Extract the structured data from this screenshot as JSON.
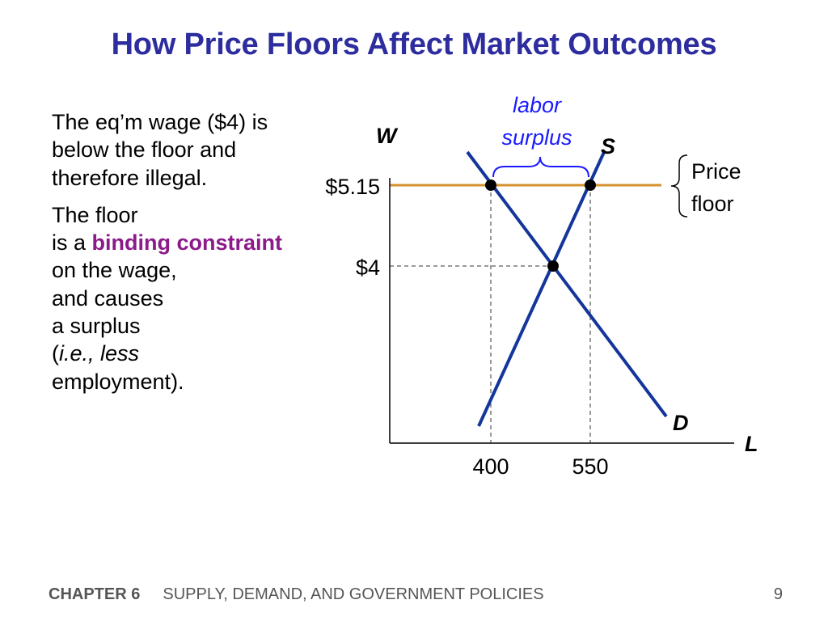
{
  "title": "How Price Floors Affect Market Outcomes",
  "body": {
    "p1": "The eq’m wage ($4) is below the floor and therefore illegal.",
    "p2_line1": "The floor",
    "p2_line2_prefix": "is a ",
    "p2_emph": "binding constraint",
    "p2_line3": "on the wage,",
    "p2_line4": "and causes",
    "p2_line5": "a surplus",
    "p2_paren_open": "(",
    "p2_italic": "i.e., less",
    "p2_line7": "employment)."
  },
  "diagram": {
    "y_axis_label": "W",
    "x_axis_label": "L",
    "supply_label": "S",
    "demand_label": "D",
    "floor_price_label": "$5.15",
    "eq_price_label": "$4",
    "q_demanded_label": "400",
    "q_supplied_label": "550",
    "surplus_label_line1": "labor",
    "surplus_label_line2": "surplus",
    "floor_label_line1": "Price",
    "floor_label_line2": "floor",
    "colors": {
      "curves": "#14359b",
      "floor_line": "#d4912e",
      "surplus_text": "#1a1aff",
      "brace": "#1a1aff"
    }
  },
  "footer": {
    "chapter": "CHAPTER 6",
    "subject": "SUPPLY, DEMAND, AND GOVERNMENT POLICIES",
    "page": "9"
  }
}
